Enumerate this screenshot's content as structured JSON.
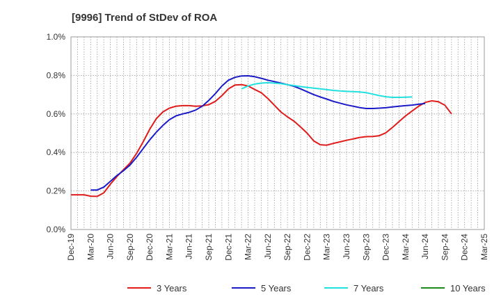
{
  "chart_data": {
    "type": "line",
    "title": "[9996]  Trend of StDev of ROA",
    "xlabel": "",
    "ylabel": "",
    "x_ticks": [
      "Dec-19",
      "Mar-20",
      "Jun-20",
      "Sep-20",
      "Dec-20",
      "Mar-21",
      "Jun-21",
      "Sep-21",
      "Dec-21",
      "Mar-22",
      "Jun-22",
      "Sep-22",
      "Dec-22",
      "Mar-23",
      "Jun-23",
      "Sep-23",
      "Dec-23",
      "Mar-24",
      "Jun-24",
      "Sep-24",
      "Dec-24",
      "Mar-25"
    ],
    "y_ticks": [
      "0.0%",
      "0.2%",
      "0.4%",
      "0.6%",
      "0.8%",
      "1.0%"
    ],
    "ylim": [
      0,
      1.0
    ],
    "y_unit": "%",
    "grid": true,
    "legend_position": "bottom",
    "series": [
      {
        "name": "3 Years",
        "color": "#e01b1b",
        "start_index": 0,
        "values": [
          0.18,
          0.18,
          0.18,
          0.173,
          0.172,
          0.19,
          0.235,
          0.275,
          0.31,
          0.345,
          0.395,
          0.455,
          0.52,
          0.575,
          0.61,
          0.63,
          0.64,
          0.643,
          0.643,
          0.64,
          0.642,
          0.648,
          0.665,
          0.695,
          0.73,
          0.75,
          0.752,
          0.745,
          0.727,
          0.71,
          0.68,
          0.645,
          0.61,
          0.585,
          0.562,
          0.532,
          0.5,
          0.46,
          0.44,
          0.438,
          0.447,
          0.455,
          0.463,
          0.47,
          0.478,
          0.482,
          0.483,
          0.487,
          0.502,
          0.53,
          0.56,
          0.59,
          0.615,
          0.64,
          0.66,
          0.668,
          0.663,
          0.645,
          0.6
        ]
      },
      {
        "name": "5 Years",
        "color": "#1a1ac8",
        "start_index": 3,
        "values": [
          0.205,
          0.205,
          0.22,
          0.25,
          0.28,
          0.305,
          0.335,
          0.375,
          0.42,
          0.465,
          0.505,
          0.54,
          0.57,
          0.59,
          0.6,
          0.608,
          0.62,
          0.64,
          0.67,
          0.705,
          0.745,
          0.775,
          0.79,
          0.797,
          0.798,
          0.793,
          0.785,
          0.775,
          0.768,
          0.76,
          0.752,
          0.743,
          0.73,
          0.715,
          0.7,
          0.688,
          0.677,
          0.665,
          0.656,
          0.647,
          0.64,
          0.633,
          0.628,
          0.628,
          0.63,
          0.632,
          0.636,
          0.64,
          0.643,
          0.646,
          0.65,
          0.654
        ]
      },
      {
        "name": "7 Years",
        "color": "#22e0e0",
        "start_index": 26,
        "values": [
          0.73,
          0.745,
          0.755,
          0.76,
          0.762,
          0.76,
          0.757,
          0.752,
          0.747,
          0.742,
          0.738,
          0.734,
          0.73,
          0.726,
          0.722,
          0.719,
          0.717,
          0.716,
          0.714,
          0.71,
          0.703,
          0.695,
          0.689,
          0.686,
          0.686,
          0.687,
          0.688
        ]
      },
      {
        "name": "10 Years",
        "color": "#1a8a1a",
        "start_index": 0,
        "values": []
      }
    ]
  }
}
